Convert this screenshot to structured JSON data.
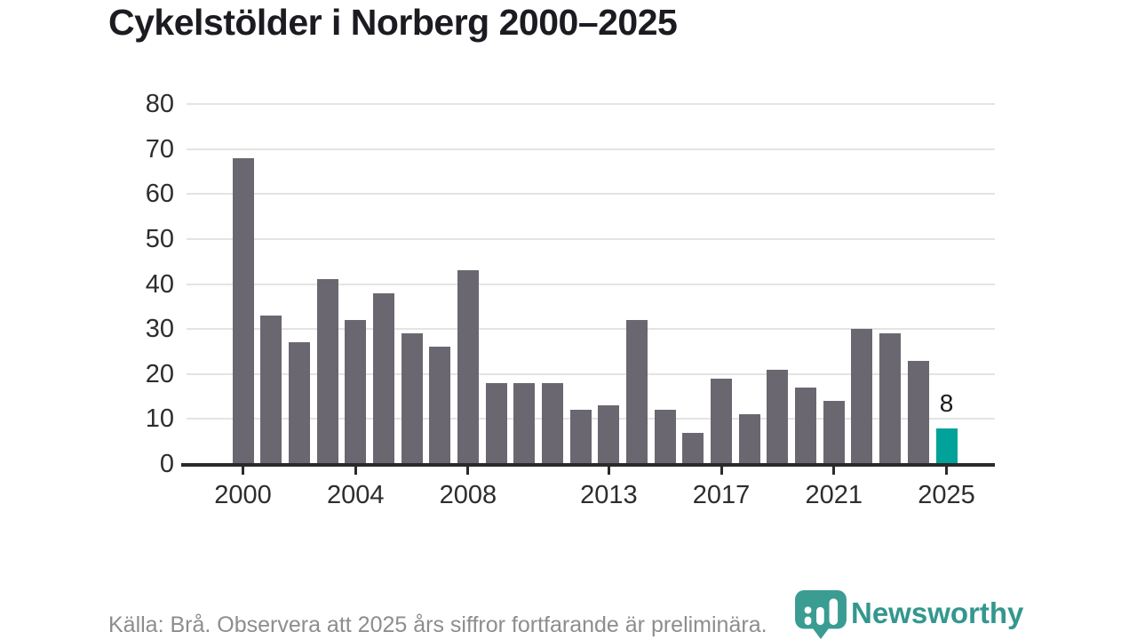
{
  "header": {
    "title": "Cykelstölder i Norberg 2000–2025"
  },
  "chart_data": {
    "type": "bar",
    "title": "Cykelstölder i Norberg 2000–2025",
    "x": [
      2000,
      2001,
      2002,
      2003,
      2004,
      2005,
      2006,
      2007,
      2008,
      2009,
      2010,
      2011,
      2012,
      2013,
      2014,
      2015,
      2016,
      2017,
      2018,
      2019,
      2020,
      2021,
      2022,
      2023,
      2024,
      2025
    ],
    "values": [
      68,
      33,
      27,
      41,
      32,
      38,
      29,
      26,
      43,
      18,
      18,
      18,
      12,
      13,
      32,
      12,
      7,
      19,
      11,
      21,
      17,
      14,
      30,
      29,
      23,
      8
    ],
    "xlabel": "",
    "ylabel": "",
    "ylim": [
      0,
      80
    ],
    "yticks": [
      0,
      10,
      20,
      30,
      40,
      50,
      60,
      70,
      80
    ],
    "xtick_labels": [
      2000,
      2004,
      2008,
      2013,
      2017,
      2021,
      2025
    ],
    "bar_color": "#6b6770",
    "highlight": {
      "x": 2025,
      "color": "#00a29a",
      "label": "8"
    },
    "grid": "horizontal-light",
    "legend": "none"
  },
  "footer": {
    "source_note": "Källa: Brå. Observera att 2025 års siffror fortfarande är preliminära."
  },
  "logo": {
    "text": "Newsworthy",
    "color": "#33978f",
    "icon": "newsworthy-pin-icon",
    "icon_color": "#3a9c93"
  }
}
